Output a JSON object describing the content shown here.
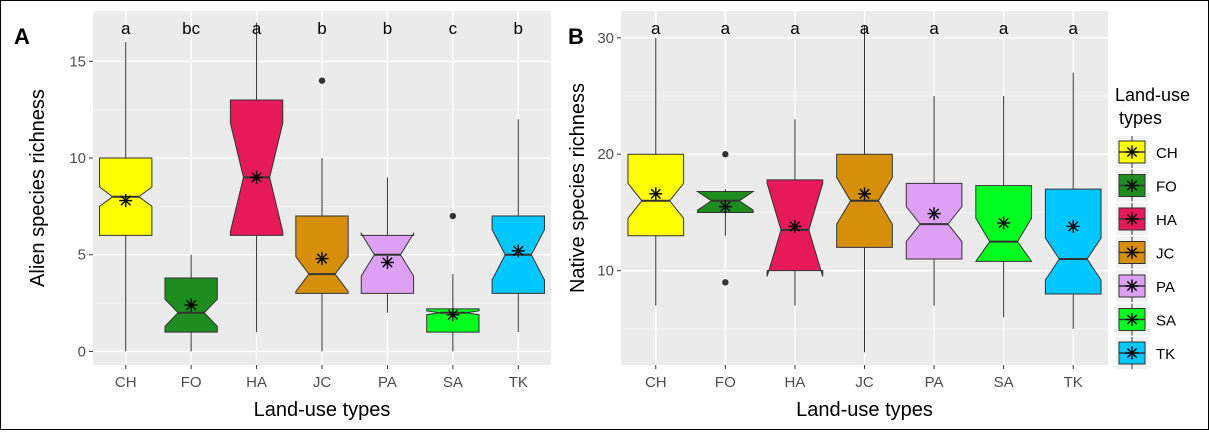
{
  "colors": {
    "panel_bg": "#EBEBEB",
    "grid": "#FFFFFF",
    "CH": "#FFFF00",
    "FO": "#1E8C1E",
    "HA": "#E6195A",
    "JC": "#D68F0B",
    "PA": "#DDA0F5",
    "SA": "#00FF1F",
    "TK": "#00C8FF"
  },
  "legend": {
    "title_line1": "Land-use",
    "title_line2": "types",
    "entries": [
      "CH",
      "FO",
      "HA",
      "JC",
      "PA",
      "SA",
      "TK"
    ],
    "position": "right"
  },
  "chart_data": [
    {
      "type": "boxplot",
      "panel_label": "A",
      "xlabel": "Land-use types",
      "ylabel": "Alien species richness",
      "ylim": [
        -0.7,
        17.6
      ],
      "yticks": [
        0,
        5,
        10,
        15
      ],
      "grid": true,
      "categories": [
        "CH",
        "FO",
        "HA",
        "JC",
        "PA",
        "SA",
        "TK"
      ],
      "letters": [
        "a",
        "bc",
        "a",
        "b",
        "b",
        "c",
        "b"
      ],
      "boxes": [
        {
          "min": 0,
          "q1": 6,
          "median": 8,
          "q3": 10,
          "max": 16,
          "notch_lo": 7.5,
          "notch_hi": 8.5,
          "mean": 7.8,
          "outliers": []
        },
        {
          "min": 0,
          "q1": 1,
          "median": 2,
          "q3": 3.8,
          "max": 5,
          "notch_lo": 1.3,
          "notch_hi": 2.7,
          "mean": 2.4,
          "outliers": []
        },
        {
          "min": 1,
          "q1": 6,
          "median": 9,
          "q3": 13,
          "max": 17,
          "notch_lo": 6.2,
          "notch_hi": 11.8,
          "mean": 9.0,
          "outliers": []
        },
        {
          "min": 0,
          "q1": 3,
          "median": 4,
          "q3": 7,
          "max": 10,
          "notch_lo": 3.1,
          "notch_hi": 4.9,
          "mean": 4.8,
          "outliers": [
            14
          ]
        },
        {
          "min": 2,
          "q1": 3,
          "median": 5,
          "q3": 6,
          "max": 9,
          "notch_lo": 3.9,
          "notch_hi": 6.1,
          "mean": 4.6,
          "outliers": []
        },
        {
          "min": 0,
          "q1": 1,
          "median": 2,
          "q3": 2.2,
          "max": 4,
          "notch_lo": 1.9,
          "notch_hi": 2.1,
          "mean": 1.9,
          "outliers": [
            7
          ]
        },
        {
          "min": 1,
          "q1": 3,
          "median": 5,
          "q3": 7,
          "max": 12,
          "notch_lo": 3.7,
          "notch_hi": 6.3,
          "mean": 5.2,
          "outliers": []
        }
      ]
    },
    {
      "type": "boxplot",
      "panel_label": "B",
      "xlabel": "Land-use types",
      "ylabel": "Native species richness",
      "ylim": [
        1.9,
        32.3
      ],
      "yticks": [
        10,
        20,
        30
      ],
      "grid": true,
      "categories": [
        "CH",
        "FO",
        "HA",
        "JC",
        "PA",
        "SA",
        "TK"
      ],
      "letters": [
        "a",
        "a",
        "a",
        "a",
        "a",
        "a",
        "a"
      ],
      "boxes": [
        {
          "min": 7,
          "q1": 13,
          "median": 16,
          "q3": 20,
          "max": 30,
          "notch_lo": 14.5,
          "notch_hi": 17.5,
          "mean": 16.6,
          "outliers": []
        },
        {
          "min": 13,
          "q1": 15,
          "median": 16,
          "q3": 16.8,
          "max": 17,
          "notch_lo": 15.2,
          "notch_hi": 16.8,
          "mean": 15.5,
          "outliers": [
            20,
            9
          ]
        },
        {
          "min": 7,
          "q1": 10,
          "median": 13.5,
          "q3": 17.8,
          "max": 23,
          "notch_lo": 9.5,
          "notch_hi": 17.5,
          "mean": 13.8,
          "outliers": []
        },
        {
          "min": 3,
          "q1": 12,
          "median": 16,
          "q3": 20,
          "max": 31,
          "notch_lo": 14,
          "notch_hi": 18,
          "mean": 16.6,
          "outliers": []
        },
        {
          "min": 7,
          "q1": 11,
          "median": 14,
          "q3": 17.5,
          "max": 25,
          "notch_lo": 12.5,
          "notch_hi": 15.5,
          "mean": 14.9,
          "outliers": []
        },
        {
          "min": 6,
          "q1": 10.8,
          "median": 12.5,
          "q3": 17.3,
          "max": 25,
          "notch_lo": 10.8,
          "notch_hi": 14.5,
          "mean": 14.1,
          "outliers": []
        },
        {
          "min": 5,
          "q1": 8,
          "median": 11,
          "q3": 17,
          "max": 27,
          "notch_lo": 9.2,
          "notch_hi": 12.8,
          "mean": 13.8,
          "outliers": []
        }
      ]
    }
  ]
}
